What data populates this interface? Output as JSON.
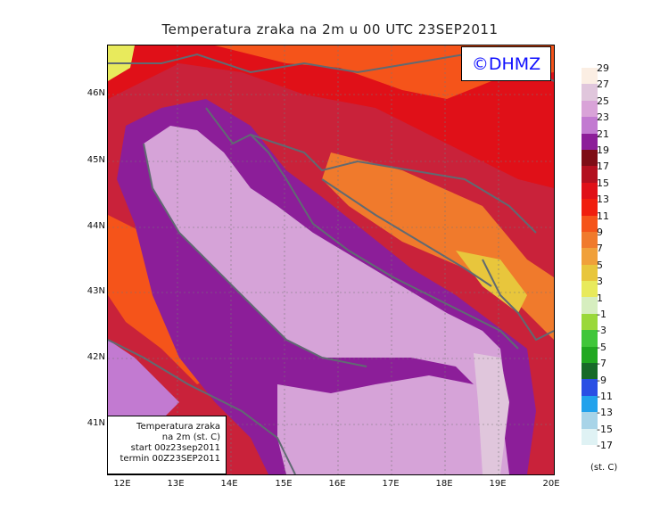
{
  "title": "Temperatura zraka na 2m u 00 UTC 23SEP2011",
  "logo": "©DHMZ",
  "info": {
    "line1": "Temperatura zraka",
    "line2": "na 2m (st. C)",
    "line3": "start 00z23sep2011",
    "line4": "termin 00Z23SEP2011"
  },
  "lat_labels": [
    "46N",
    "45N",
    "44N",
    "43N",
    "42N",
    "41N"
  ],
  "lon_labels": [
    "12E",
    "13E",
    "14E",
    "15E",
    "16E",
    "17E",
    "18E",
    "19E",
    "20E"
  ],
  "legend": {
    "unit": "(st. C)",
    "labels": [
      "29",
      "27",
      "25",
      "23",
      "21",
      "19",
      "17",
      "15",
      "13",
      "11",
      "9",
      "7",
      "5",
      "3",
      "1",
      "-1",
      "-3",
      "-5",
      "-7",
      "-9",
      "-11",
      "-13",
      "-15",
      "-17"
    ],
    "colors": [
      "#fbeee3",
      "#e0c6dc",
      "#d9a3d8",
      "#c27ad1",
      "#8c1e99",
      "#7e0d16",
      "#b3101f",
      "#e01018",
      "#f01e0e",
      "#f5541a",
      "#f07a2c",
      "#f0a03a",
      "#e8c63c",
      "#e8ea5c",
      "#d6eebf",
      "#9ad83a",
      "#40c63a",
      "#20a820",
      "#166a28",
      "#2a4fe4",
      "#22a2ec",
      "#a8d4e8",
      "#dff2f4",
      "#ffffff"
    ]
  },
  "colors": {
    "sea": "#d6a3d8",
    "land_warm": "#e01018",
    "land_mild": "#f07a2c",
    "coast_dark": "#b3101f",
    "border": "#606a72"
  }
}
